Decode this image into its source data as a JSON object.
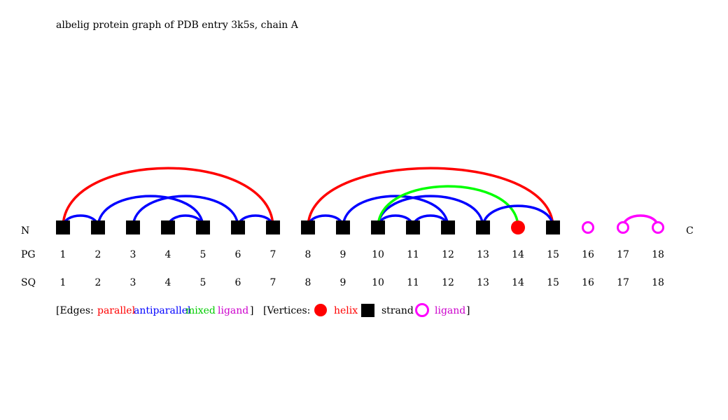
{
  "title": "albelig protein graph of PDB entry 3k5s, chain A",
  "end_labels": {
    "n": "N",
    "c": "C"
  },
  "row_labels": {
    "pg": "PG",
    "sq": "SQ"
  },
  "colors": {
    "parallel": "#ff0000",
    "antiparallel": "#0000ff",
    "mixed": "#00ff00",
    "ligand": "#ff00ff",
    "helix": "#ff0000",
    "strand": "#000000",
    "text": "#000000"
  },
  "vertices": [
    {
      "pg": "1",
      "sq": "1",
      "type": "strand"
    },
    {
      "pg": "2",
      "sq": "2",
      "type": "strand"
    },
    {
      "pg": "3",
      "sq": "3",
      "type": "strand"
    },
    {
      "pg": "4",
      "sq": "4",
      "type": "strand"
    },
    {
      "pg": "5",
      "sq": "5",
      "type": "strand"
    },
    {
      "pg": "6",
      "sq": "6",
      "type": "strand"
    },
    {
      "pg": "7",
      "sq": "7",
      "type": "strand"
    },
    {
      "pg": "8",
      "sq": "8",
      "type": "strand"
    },
    {
      "pg": "9",
      "sq": "9",
      "type": "strand"
    },
    {
      "pg": "10",
      "sq": "10",
      "type": "strand"
    },
    {
      "pg": "11",
      "sq": "11",
      "type": "strand"
    },
    {
      "pg": "12",
      "sq": "12",
      "type": "strand"
    },
    {
      "pg": "13",
      "sq": "13",
      "type": "strand"
    },
    {
      "pg": "14",
      "sq": "14",
      "type": "helix"
    },
    {
      "pg": "15",
      "sq": "15",
      "type": "strand"
    },
    {
      "pg": "16",
      "sq": "16",
      "type": "ligand"
    },
    {
      "pg": "17",
      "sq": "17",
      "type": "ligand"
    },
    {
      "pg": "18",
      "sq": "18",
      "type": "ligand"
    }
  ],
  "edges": [
    {
      "from": 1,
      "to": 7,
      "type": "parallel"
    },
    {
      "from": 1,
      "to": 2,
      "type": "antiparallel"
    },
    {
      "from": 2,
      "to": 5,
      "type": "antiparallel"
    },
    {
      "from": 3,
      "to": 6,
      "type": "antiparallel"
    },
    {
      "from": 4,
      "to": 5,
      "type": "antiparallel"
    },
    {
      "from": 6,
      "to": 7,
      "type": "antiparallel"
    },
    {
      "from": 8,
      "to": 15,
      "type": "parallel"
    },
    {
      "from": 8,
      "to": 9,
      "type": "antiparallel"
    },
    {
      "from": 9,
      "to": 12,
      "type": "antiparallel"
    },
    {
      "from": 10,
      "to": 11,
      "type": "antiparallel"
    },
    {
      "from": 11,
      "to": 12,
      "type": "antiparallel"
    },
    {
      "from": 10,
      "to": 13,
      "type": "antiparallel"
    },
    {
      "from": 10,
      "to": 14,
      "type": "mixed"
    },
    {
      "from": 13,
      "to": 15,
      "type": "antiparallel"
    },
    {
      "from": 17,
      "to": 18,
      "type": "ligand"
    }
  ],
  "legend": {
    "edges_open": "[Edges:",
    "parallel": "parallel",
    "antiparallel": "antiparallel",
    "mixed": "mixed",
    "ligand": "ligand",
    "edges_close": "]",
    "vertices_open": "[Vertices:",
    "helix": "helix",
    "strand": "strand",
    "ligand_vertex": "ligand",
    "vertices_close": "]"
  }
}
